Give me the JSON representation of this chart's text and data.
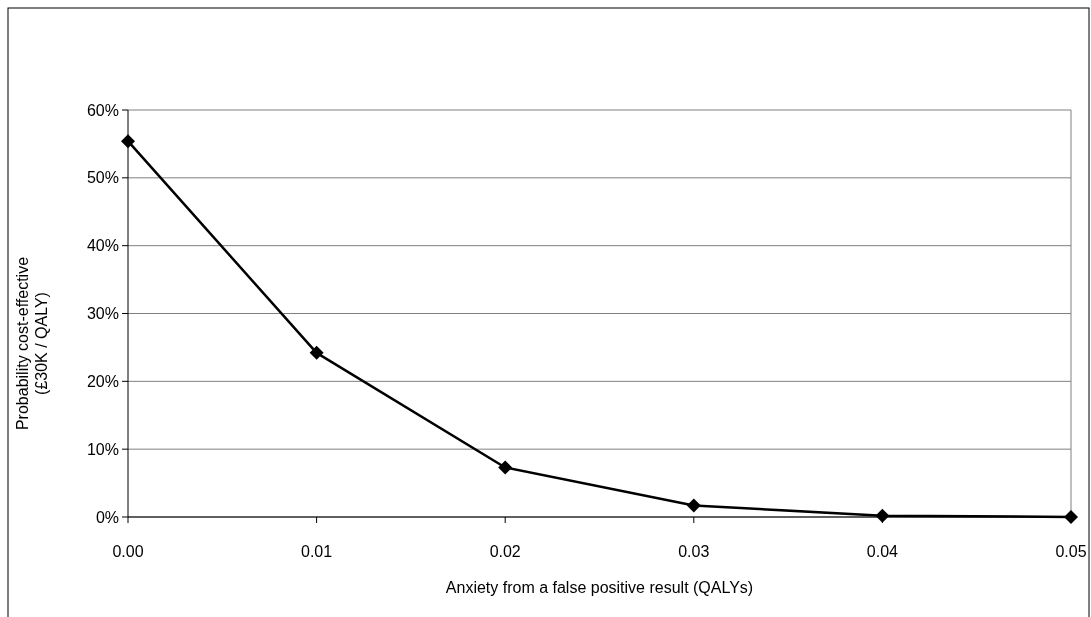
{
  "chart_data": {
    "type": "line",
    "xlabel": "Anxiety from a false positive result (QALYs)",
    "ylabel": "Probability cost-effective\n(£30K / QALY)",
    "x": [
      0,
      0.01,
      0.02,
      0.03,
      0.04,
      0.05
    ],
    "series": [
      {
        "color": "#000000",
        "values": [
          55.4,
          24.2,
          7.3,
          1.7,
          0.2,
          0
        ]
      }
    ],
    "xlim": [
      0,
      0.05
    ],
    "xticks": [
      {
        "value": 0,
        "label": "0.00"
      },
      {
        "value": 0.01,
        "label": "0.01"
      },
      {
        "value": 0.02,
        "label": "0.02"
      },
      {
        "value": 0.03,
        "label": "0.03"
      },
      {
        "value": 0.04,
        "label": "0.04"
      },
      {
        "value": 0.05,
        "label": "0.05"
      }
    ],
    "ylim": [
      0,
      60
    ],
    "yticks": [
      {
        "value": 0,
        "label": "0%"
      },
      {
        "value": 10,
        "label": "10%"
      },
      {
        "value": 20,
        "label": "20%"
      },
      {
        "value": 30,
        "label": "30%"
      },
      {
        "value": 40,
        "label": "40%"
      },
      {
        "value": 50,
        "label": "50%"
      },
      {
        "value": 60,
        "label": "60%"
      }
    ],
    "grid": "y",
    "marker": "diamond",
    "line_style": "solid"
  }
}
